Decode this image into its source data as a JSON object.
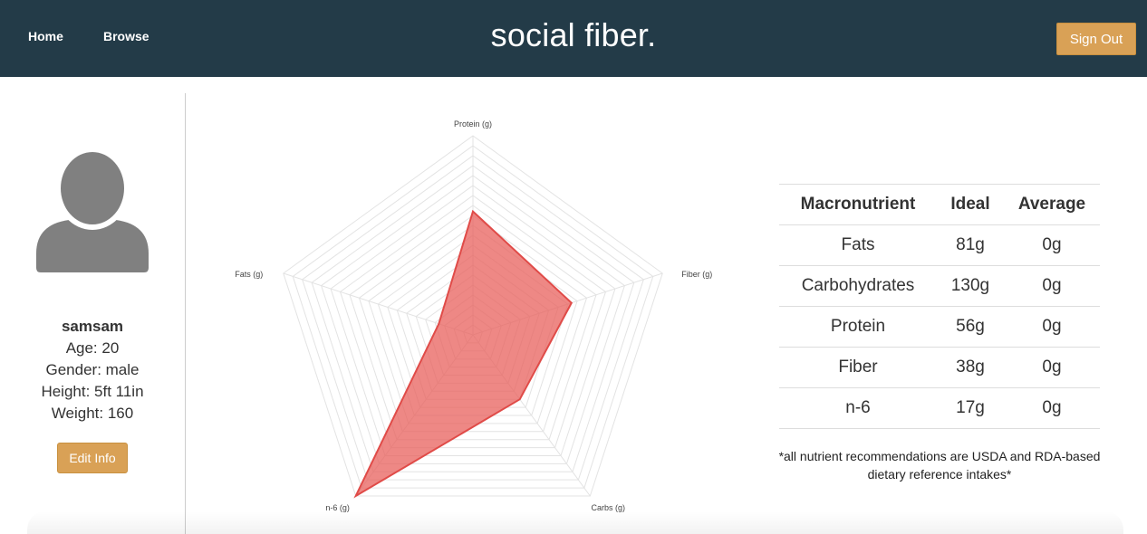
{
  "nav": {
    "home": "Home",
    "browse": "Browse",
    "brand": "social fiber.",
    "sign_out": "Sign Out"
  },
  "profile": {
    "username": "samsam",
    "age": "Age: 20",
    "gender": "Gender: male",
    "height": "Height: 5ft 11in",
    "weight": "Weight: 160",
    "edit_button": "Edit Info"
  },
  "chart_data": {
    "type": "radar",
    "axes": [
      "Protein (g)",
      "Fiber (g)",
      "Carbs (g)",
      "n-6 (g)",
      "Fats (g)"
    ],
    "max": 1,
    "levels": 20,
    "series": [
      {
        "values": [
          0.62,
          0.52,
          0.4,
          1.0,
          0.18
        ],
        "color": "#e8605c"
      }
    ],
    "grid": true
  },
  "table": {
    "headers": [
      "Macronutrient",
      "Ideal",
      "Average"
    ],
    "rows": [
      [
        "Fats",
        "81g",
        "0g"
      ],
      [
        "Carbohydrates",
        "130g",
        "0g"
      ],
      [
        "Protein",
        "56g",
        "0g"
      ],
      [
        "Fiber",
        "38g",
        "0g"
      ],
      [
        "n-6",
        "17g",
        "0g"
      ]
    ]
  },
  "footnote": {
    "line1": "*all nutrient recommendations are USDA and RDA-based",
    "line2": "dietary reference intakes*"
  },
  "colors": {
    "navbar": "#233b48",
    "accent_button": "#d9a156",
    "avatar": "#808080",
    "radar_fill": "#e8605c"
  }
}
